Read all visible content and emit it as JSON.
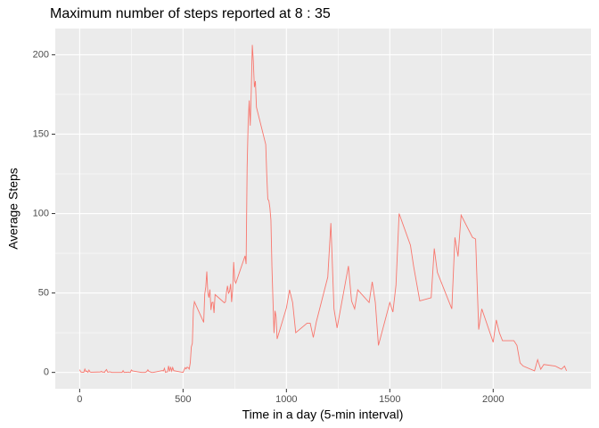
{
  "chart_data": {
    "type": "line",
    "title": "Maximum number of steps reported at 8 : 35",
    "x_label": "Time in a day (5-min interval)",
    "y_label": "Average Steps",
    "color": "#F8766D",
    "grid": true,
    "x": [
      0,
      5,
      10,
      15,
      20,
      25,
      30,
      35,
      40,
      45,
      50,
      55,
      100,
      105,
      110,
      115,
      120,
      125,
      130,
      135,
      140,
      145,
      150,
      155,
      200,
      205,
      210,
      215,
      220,
      225,
      230,
      235,
      240,
      245,
      250,
      255,
      300,
      305,
      310,
      315,
      320,
      325,
      330,
      335,
      340,
      345,
      350,
      355,
      400,
      405,
      410,
      415,
      420,
      425,
      430,
      435,
      440,
      445,
      450,
      455,
      500,
      505,
      510,
      515,
      520,
      525,
      530,
      535,
      540,
      545,
      550,
      555,
      600,
      605,
      610,
      615,
      620,
      625,
      630,
      635,
      640,
      645,
      650,
      655,
      700,
      705,
      710,
      715,
      720,
      725,
      730,
      735,
      740,
      745,
      750,
      755,
      800,
      805,
      810,
      815,
      820,
      825,
      830,
      835,
      840,
      845,
      850,
      855,
      900,
      905,
      910,
      915,
      920,
      925,
      930,
      935,
      940,
      945,
      950,
      955,
      1000,
      1015,
      1030,
      1045,
      1100,
      1115,
      1130,
      1145,
      1200,
      1215,
      1230,
      1245,
      1300,
      1315,
      1330,
      1345,
      1400,
      1415,
      1430,
      1445,
      1500,
      1515,
      1530,
      1545,
      1600,
      1615,
      1630,
      1645,
      1700,
      1715,
      1730,
      1745,
      1800,
      1815,
      1830,
      1845,
      1900,
      1915,
      1930,
      1945,
      2000,
      2015,
      2030,
      2045,
      2100,
      2115,
      2130,
      2145,
      2200,
      2215,
      2230,
      2245,
      2300,
      2315,
      2330,
      2345,
      2355
    ],
    "values": [
      1.7,
      0.34,
      0.13,
      0.15,
      0.08,
      2.1,
      0.53,
      0.87,
      0,
      1.5,
      0.3,
      0.13,
      0.3,
      0.68,
      0.15,
      0.34,
      0,
      1.1,
      1.8,
      0.17,
      0.17,
      0.38,
      0.26,
      0,
      0,
      0,
      1.13,
      0,
      0,
      0.13,
      0,
      0.23,
      0,
      0,
      1.55,
      0.94,
      0,
      0,
      0,
      0,
      0.2,
      0.62,
      1.62,
      0.58,
      0.49,
      0.08,
      0,
      0,
      1.18,
      0.94,
      2.57,
      0,
      0.34,
      0.36,
      4.11,
      0.66,
      3.49,
      0.83,
      3.11,
      1.11,
      0,
      1.57,
      3,
      2.25,
      3.32,
      2.96,
      2.09,
      6.05,
      16,
      18.3,
      39.5,
      44.5,
      31.5,
      49.3,
      53.8,
      63.5,
      50,
      47.1,
      52.2,
      39.3,
      44,
      44.2,
      37.4,
      49,
      43.8,
      44.4,
      50.5,
      54.5,
      49.9,
      51,
      55.7,
      44.3,
      52.3,
      69.5,
      57.8,
      56.2,
      73.4,
      68.2,
      129.4,
      157.5,
      171.2,
      155.4,
      177.3,
      206.2,
      195.9,
      179.6,
      183.4,
      167,
      143.5,
      124,
      109.1,
      108.1,
      103.7,
      96,
      66.2,
      45.2,
      24.8,
      38.8,
      35,
      21.1,
      40.6,
      52,
      44,
      25,
      31,
      31,
      22,
      32,
      60,
      94,
      40,
      28,
      67,
      45,
      40,
      52,
      44,
      57,
      44,
      17,
      44,
      38,
      55,
      100,
      80,
      67,
      56,
      45,
      47,
      78,
      63,
      58,
      40,
      85,
      73,
      99,
      85,
      84,
      27,
      40,
      19,
      33,
      25,
      20,
      20,
      17,
      6,
      4,
      1,
      8,
      2,
      5,
      4,
      3,
      2,
      4,
      1
    ],
    "xlim": [
      -118,
      2473
    ],
    "xticks": [
      0,
      500,
      1000,
      1500,
      2000
    ],
    "ylim": [
      -10.3,
      216.5
    ],
    "yticks": [
      0,
      50,
      100,
      150,
      200
    ]
  }
}
